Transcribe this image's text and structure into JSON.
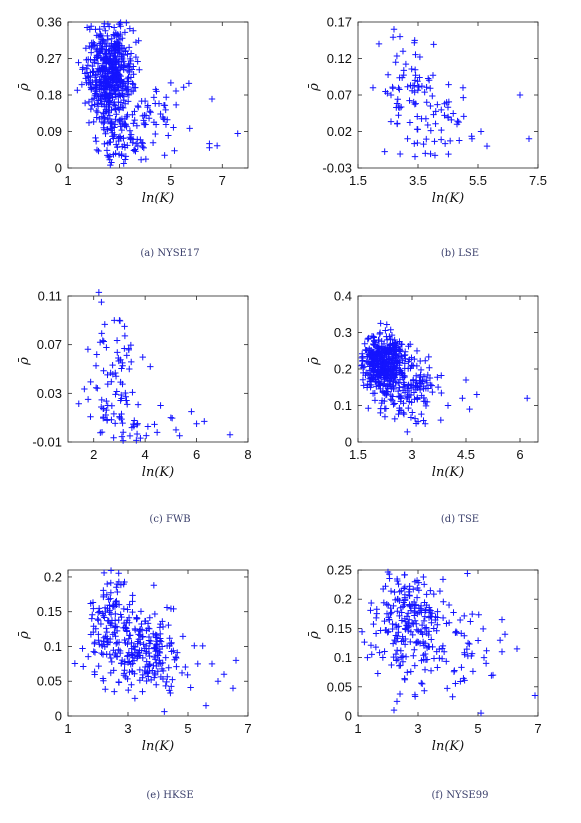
{
  "panels": [
    {
      "caption": "(a) NYSE17",
      "chart_data": {
        "type": "scatter",
        "xlabel": "ln(K)",
        "ylabel": "ρ̄",
        "xlim": [
          1,
          8
        ],
        "ylim": [
          0,
          0.36
        ],
        "xticks": [
          "1",
          "3",
          "5",
          "7"
        ],
        "xtick_values": [
          1,
          3,
          5,
          7
        ],
        "yticks": [
          "0",
          "0.09",
          "0.18",
          "0.27",
          "0.36"
        ],
        "ytick_values": [
          0,
          0.09,
          0.18,
          0.27,
          0.36
        ],
        "marker": "+",
        "color": "#1414ff",
        "cluster": [
          {
            "cx": 2.6,
            "cy": 0.24,
            "sx": 0.45,
            "sy": 0.055,
            "n": 520
          },
          {
            "cx": 2.9,
            "cy": 0.07,
            "sx": 0.5,
            "sy": 0.04,
            "n": 90
          },
          {
            "cx": 4.0,
            "cy": 0.14,
            "sx": 0.7,
            "sy": 0.05,
            "n": 60
          }
        ],
        "points": [
          [
            6.6,
            0.17
          ],
          [
            7.6,
            0.085
          ],
          [
            6.5,
            0.06
          ],
          [
            6.5,
            0.05
          ],
          [
            6.8,
            0.055
          ],
          [
            5.2,
            0.19
          ],
          [
            5.0,
            0.21
          ],
          [
            4.9,
            0.08
          ],
          [
            5.1,
            0.1
          ]
        ]
      }
    },
    {
      "caption": "(b) LSE",
      "chart_data": {
        "type": "scatter",
        "xlabel": "ln(K)",
        "ylabel": "ρ̄",
        "xlim": [
          1.5,
          7.5
        ],
        "ylim": [
          -0.03,
          0.17
        ],
        "xticks": [
          "1.5",
          "3.5",
          "5.5",
          "7.5"
        ],
        "xtick_values": [
          1.5,
          3.5,
          5.5,
          7.5
        ],
        "yticks": [
          "-0.03",
          "0.02",
          "0.07",
          "0.12",
          "0.17"
        ],
        "ytick_values": [
          -0.03,
          0.02,
          0.07,
          0.12,
          0.17
        ],
        "marker": "+",
        "color": "#1414ff",
        "cluster": [
          {
            "cx": 3.2,
            "cy": 0.07,
            "sx": 0.55,
            "sy": 0.035,
            "n": 70
          },
          {
            "cx": 4.2,
            "cy": 0.025,
            "sx": 0.6,
            "sy": 0.02,
            "n": 35
          }
        ],
        "points": [
          [
            2.0,
            0.08
          ],
          [
            2.2,
            0.14
          ],
          [
            2.7,
            0.16
          ],
          [
            2.9,
            0.15
          ],
          [
            3.0,
            0.13
          ],
          [
            2.6,
            0.07
          ],
          [
            6.9,
            0.07
          ],
          [
            7.2,
            0.01
          ],
          [
            5.3,
            0.01
          ],
          [
            5.6,
            0.02
          ],
          [
            5.0,
            0.08
          ],
          [
            5.8,
            0.0
          ],
          [
            4.5,
            0.04
          ],
          [
            4.8,
            0.03
          ]
        ]
      }
    },
    {
      "caption": "(c) FWB",
      "chart_data": {
        "type": "scatter",
        "xlabel": "ln(K)",
        "ylabel": "ρ̄",
        "xlim": [
          1,
          8
        ],
        "ylim": [
          -0.01,
          0.11
        ],
        "xticks": [
          "2",
          "4",
          "6",
          "8"
        ],
        "xtick_values": [
          2,
          4,
          6,
          8
        ],
        "yticks": [
          "-0.01",
          "0.03",
          "0.07",
          "0.11"
        ],
        "ytick_values": [
          -0.01,
          0.03,
          0.07,
          0.11
        ],
        "marker": "+",
        "color": "#1414ff",
        "cluster": [
          {
            "cx": 2.7,
            "cy": 0.04,
            "sx": 0.45,
            "sy": 0.025,
            "n": 80
          },
          {
            "cx": 3.6,
            "cy": 0.0,
            "sx": 0.7,
            "sy": 0.006,
            "n": 25
          }
        ],
        "points": [
          [
            2.2,
            0.113
          ],
          [
            2.3,
            0.105
          ],
          [
            2.8,
            0.09
          ],
          [
            3.0,
            0.09
          ],
          [
            3.2,
            0.085
          ],
          [
            4.2,
            0.052
          ],
          [
            5.2,
            0.0
          ],
          [
            5.8,
            0.015
          ],
          [
            6.0,
            0.005
          ],
          [
            6.3,
            0.007
          ],
          [
            7.3,
            -0.004
          ],
          [
            4.6,
            0.02
          ],
          [
            5.0,
            0.01
          ]
        ]
      }
    },
    {
      "caption": "(d) TSE",
      "chart_data": {
        "type": "scatter",
        "xlabel": "ln(K)",
        "ylabel": "ρ̄",
        "xlim": [
          1.5,
          6.5
        ],
        "ylim": [
          0,
          0.4
        ],
        "xticks": [
          "1.5",
          "3",
          "4.5",
          "6"
        ],
        "xtick_values": [
          1.5,
          3,
          4.5,
          6
        ],
        "yticks": [
          "0",
          "0.1",
          "0.2",
          "0.3",
          "0.4"
        ],
        "ytick_values": [
          0,
          0.1,
          0.2,
          0.3,
          0.4
        ],
        "marker": "+",
        "color": "#1414ff",
        "cluster": [
          {
            "cx": 2.2,
            "cy": 0.22,
            "sx": 0.3,
            "sy": 0.04,
            "n": 420
          },
          {
            "cx": 2.9,
            "cy": 0.15,
            "sx": 0.45,
            "sy": 0.045,
            "n": 160
          }
        ],
        "points": [
          [
            6.2,
            0.12
          ],
          [
            4.8,
            0.13
          ],
          [
            4.6,
            0.09
          ],
          [
            4.5,
            0.17
          ],
          [
            4.4,
            0.12
          ],
          [
            3.8,
            0.06
          ],
          [
            4.0,
            0.1
          ]
        ]
      }
    },
    {
      "caption": "(e) HKSE",
      "chart_data": {
        "type": "scatter",
        "xlabel": "ln(K)",
        "ylabel": "ρ̄",
        "xlim": [
          1,
          7
        ],
        "ylim": [
          0,
          0.21
        ],
        "xticks": [
          "1",
          "3",
          "5",
          "7"
        ],
        "xtick_values": [
          1,
          3,
          5,
          7
        ],
        "yticks": [
          "0",
          "0.05",
          "0.1",
          "0.15",
          "0.2"
        ],
        "ytick_values": [
          0,
          0.05,
          0.1,
          0.15,
          0.2
        ],
        "marker": "+",
        "color": "#1414ff",
        "cluster": [
          {
            "cx": 2.4,
            "cy": 0.15,
            "sx": 0.35,
            "sy": 0.03,
            "n": 90
          },
          {
            "cx": 3.4,
            "cy": 0.09,
            "sx": 0.8,
            "sy": 0.03,
            "n": 250
          }
        ],
        "points": [
          [
            6.6,
            0.08
          ],
          [
            6.5,
            0.04
          ],
          [
            6.2,
            0.06
          ],
          [
            5.6,
            0.015
          ],
          [
            6.0,
            0.05
          ],
          [
            5.8,
            0.075
          ]
        ]
      }
    },
    {
      "caption": "(f) NYSE99",
      "chart_data": {
        "type": "scatter",
        "xlabel": "ln(K)",
        "ylabel": "ρ̄",
        "xlim": [
          1,
          7
        ],
        "ylim": [
          0,
          0.25
        ],
        "xticks": [
          "1",
          "3",
          "5",
          "7"
        ],
        "xtick_values": [
          1,
          3,
          5,
          7
        ],
        "yticks": [
          "0",
          "0.05",
          "0.1",
          "0.15",
          "0.2",
          "0.25"
        ],
        "ytick_values": [
          0,
          0.05,
          0.1,
          0.15,
          0.2,
          0.25
        ],
        "marker": "+",
        "color": "#1414ff",
        "cluster": [
          {
            "cx": 2.7,
            "cy": 0.16,
            "sx": 0.6,
            "sy": 0.045,
            "n": 230
          },
          {
            "cx": 4.2,
            "cy": 0.11,
            "sx": 0.7,
            "sy": 0.04,
            "n": 50
          }
        ],
        "points": [
          [
            2.2,
            0.01
          ],
          [
            2.3,
            0.025
          ],
          [
            5.1,
            0.005
          ],
          [
            6.9,
            0.035
          ],
          [
            5.8,
            0.165
          ],
          [
            5.9,
            0.14
          ],
          [
            5.8,
            0.11
          ],
          [
            6.3,
            0.115
          ],
          [
            5.5,
            0.07
          ],
          [
            5.2,
            0.1
          ]
        ]
      }
    }
  ]
}
